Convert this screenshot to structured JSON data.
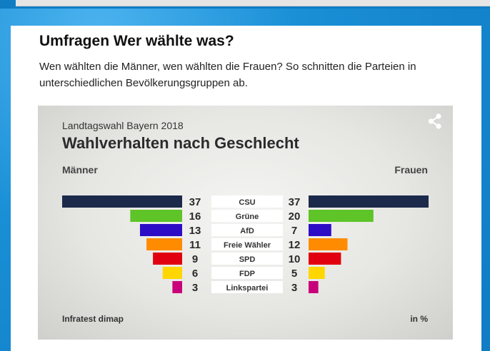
{
  "article": {
    "headline": "Umfragen Wer wählte was?",
    "intro": "Wen wählten die Männer, wen wählten die Frauen? So schnitten die Parteien in unterschiedlichen Bevölkerungsgruppen ab."
  },
  "graphic": {
    "subtitle": "Landtagswahl Bayern 2018",
    "title": "Wahlverhalten nach Geschlecht",
    "left_label": "Männer",
    "right_label": "Frauen",
    "source": "Infratest dimap",
    "unit": "in %",
    "share_icon": "share-icon"
  },
  "chart_data": {
    "type": "bar",
    "orientation": "horizontal-butterfly",
    "title": "Wahlverhalten nach Geschlecht",
    "subtitle": "Landtagswahl Bayern 2018",
    "categories": [
      "CSU",
      "Grüne",
      "AfD",
      "Freie Wähler",
      "SPD",
      "FDP",
      "Linkspartei"
    ],
    "series": [
      {
        "name": "Männer",
        "side": "left",
        "values": [
          37,
          16,
          13,
          11,
          9,
          6,
          3
        ]
      },
      {
        "name": "Frauen",
        "side": "right",
        "values": [
          37,
          20,
          7,
          12,
          10,
          5,
          3
        ]
      }
    ],
    "colors": [
      "#1b2a4a",
      "#5ec427",
      "#2d0cc6",
      "#ff8c00",
      "#e1000f",
      "#ffd600",
      "#c8007a"
    ],
    "unit": "in %",
    "source": "Infratest dimap"
  }
}
